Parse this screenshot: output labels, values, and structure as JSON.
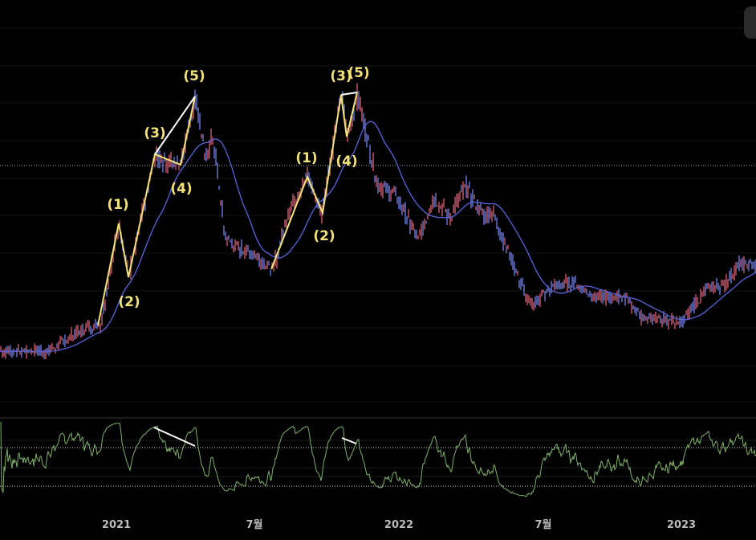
{
  "chart_data": [
    {
      "type": "line",
      "panel": "price",
      "series": [
        {
          "role": "price-candles",
          "color": "#e0607a"
        },
        {
          "role": "moving-average",
          "color": "#5a64d8"
        }
      ],
      "price": [
        [
          "2020-08-04",
          9
        ],
        [
          "2020-10-05",
          9
        ],
        [
          "2020-11-15",
          16
        ],
        [
          "2020-12-11",
          18
        ],
        [
          "2021-01-04",
          52
        ],
        [
          "2021-01-17",
          34
        ],
        [
          "2021-02-20",
          75
        ],
        [
          "2021-03-09",
          72
        ],
        [
          "2021-03-25",
          73
        ],
        [
          "2021-04-13",
          95
        ],
        [
          "2021-04-25",
          73
        ],
        [
          "2021-05-05",
          82
        ],
        [
          "2021-05-21",
          47
        ],
        [
          "2021-06-11",
          43
        ],
        [
          "2021-07-01",
          41
        ],
        [
          "2021-07-22",
          36
        ],
        [
          "2021-08-12",
          57
        ],
        [
          "2021-09-05",
          68
        ],
        [
          "2021-09-22",
          55
        ],
        [
          "2021-10-18",
          95
        ],
        [
          "2021-10-27",
          81
        ],
        [
          "2021-11-08",
          96
        ],
        [
          "2021-11-18",
          84
        ],
        [
          "2021-12-04",
          65
        ],
        [
          "2021-12-25",
          62
        ],
        [
          "2022-01-04",
          58
        ],
        [
          "2022-01-25",
          46
        ],
        [
          "2022-02-15",
          61
        ],
        [
          "2022-03-07",
          54
        ],
        [
          "2022-03-28",
          64
        ],
        [
          "2022-04-18",
          55
        ],
        [
          "2022-05-03",
          55
        ],
        [
          "2022-05-24",
          41
        ],
        [
          "2022-06-19",
          24
        ],
        [
          "2022-07-20",
          31
        ],
        [
          "2022-08-15",
          32
        ],
        [
          "2022-09-10",
          27
        ],
        [
          "2022-10-21",
          27
        ],
        [
          "2022-11-11",
          20
        ],
        [
          "2023-01-02",
          19
        ],
        [
          "2023-02-02",
          30
        ],
        [
          "2023-02-23",
          31
        ],
        [
          "2023-03-16",
          38
        ],
        [
          "2023-04-07",
          38
        ]
      ],
      "x_ticks": [
        "2021",
        "7월",
        "2022",
        "7월",
        "2023"
      ],
      "grid": true,
      "reference_line": "dotted",
      "wave_labels_first": [
        "(1)",
        "(2)",
        "(3)",
        "(4)",
        "(5)"
      ],
      "wave_labels_second": [
        "(1)",
        "(2)",
        "(3)",
        "(4)",
        "(5)"
      ],
      "wave_color": "#f2e27a",
      "divergence_color": "#ffffff"
    },
    {
      "type": "line",
      "panel": "oscillator",
      "series": [
        {
          "role": "rsi",
          "color": "#7fb069"
        }
      ],
      "bands": "dotted upper and lower",
      "divergence_lines": 2
    }
  ]
}
